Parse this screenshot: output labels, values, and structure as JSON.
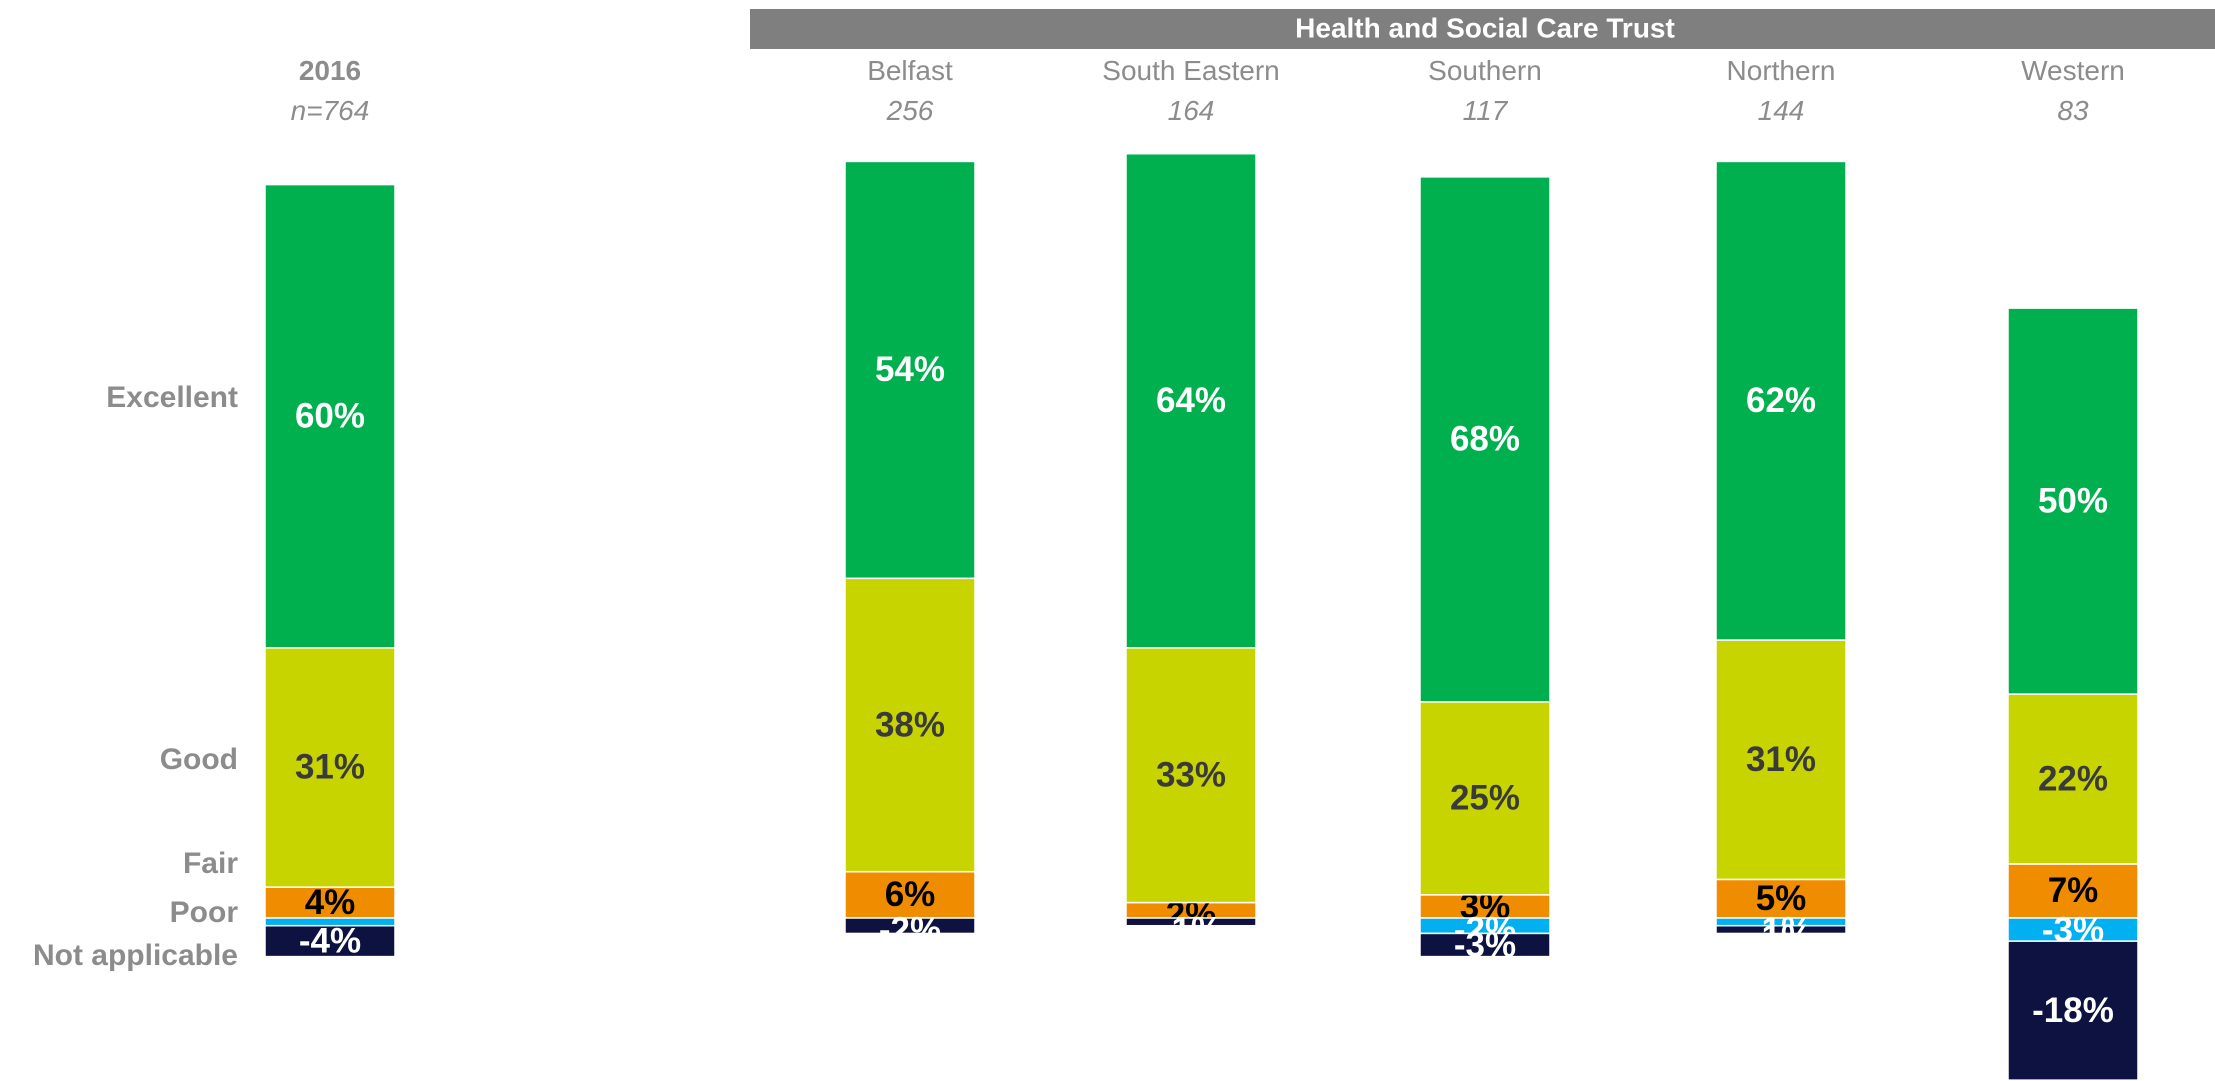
{
  "chart_data": {
    "type": "bar",
    "subtype": "diverging-stacked-bar",
    "banner": "Health and Social Care Trust",
    "categories": [
      "Excellent",
      "Good",
      "Fair",
      "Poor",
      "Not applicable"
    ],
    "colors": {
      "Excellent": "#00b04f",
      "Good": "#c8d400",
      "Fair": "#f08c00",
      "Poor": "#00b0f0",
      "Not applicable": "#0e1241",
      "banner": "#7f7f7f"
    },
    "columns": [
      {
        "title": "2016",
        "n": "n=764",
        "bold": true,
        "values": {
          "Excellent": 60,
          "Good": 31,
          "Fair": 4,
          "Poor": -1,
          "Not applicable": -4
        },
        "labels": {
          "Excellent": "60%",
          "Good": "31%",
          "Fair": "4%",
          "Poor": "",
          "Not applicable": "-4%"
        }
      },
      {
        "title": "Belfast",
        "n": "256",
        "bold": false,
        "values": {
          "Excellent": 54,
          "Good": 38,
          "Fair": 6,
          "Poor": 0,
          "Not applicable": -2
        },
        "labels": {
          "Excellent": "54%",
          "Good": "38%",
          "Fair": "6%",
          "Poor": "",
          "Not applicable": "-2%"
        }
      },
      {
        "title": "South Eastern",
        "n": "164",
        "bold": false,
        "values": {
          "Excellent": 64,
          "Good": 33,
          "Fair": 2,
          "Poor": 0,
          "Not applicable": -1
        },
        "labels": {
          "Excellent": "64%",
          "Good": "33%",
          "Fair": "2%",
          "Poor": "",
          "Not applicable": "-1%"
        }
      },
      {
        "title": "Southern",
        "n": "117",
        "bold": false,
        "values": {
          "Excellent": 68,
          "Good": 25,
          "Fair": 3,
          "Poor": -2,
          "Not applicable": -3
        },
        "labels": {
          "Excellent": "68%",
          "Good": "25%",
          "Fair": "3%",
          "Poor": "-2%",
          "Not applicable": "-3%"
        }
      },
      {
        "title": "Northern",
        "n": "144",
        "bold": false,
        "values": {
          "Excellent": 62,
          "Good": 31,
          "Fair": 5,
          "Poor": -1,
          "Not applicable": -1
        },
        "labels": {
          "Excellent": "62%",
          "Good": "31%",
          "Fair": "5%",
          "Poor": "-1%",
          "Not applicable": "-1%"
        }
      },
      {
        "title": "Western",
        "n": "83",
        "bold": false,
        "values": {
          "Excellent": 50,
          "Good": 22,
          "Fair": 7,
          "Poor": -3,
          "Not applicable": -18
        },
        "labels": {
          "Excellent": "50%",
          "Good": "22%",
          "Fair": "7%",
          "Poor": "-3%",
          "Not applicable": "-18%"
        }
      }
    ]
  }
}
